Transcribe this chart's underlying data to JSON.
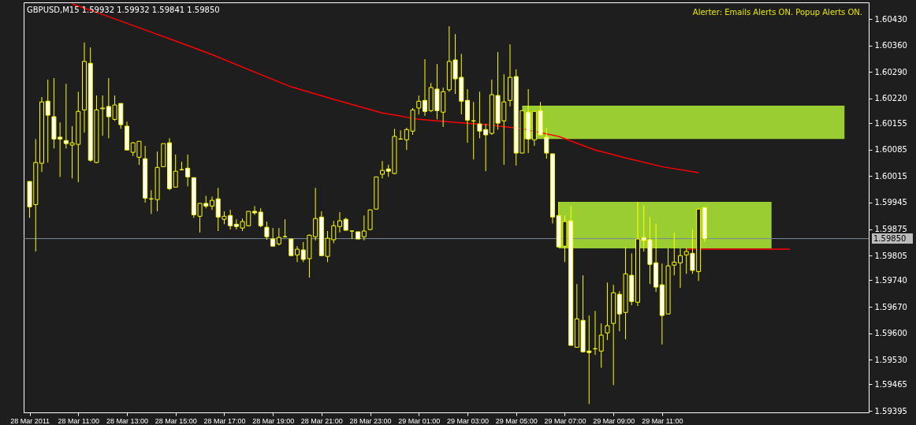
{
  "chart_data": {
    "type": "candlestick",
    "title": "GBPUSD,M15  1.59932 1.59932 1.59841 1.59850",
    "annotations": [
      "Alerter:  Emails Alerts ON.  Popup Alerts ON."
    ],
    "color": "#ffff00",
    "x": [
      "2011-03-28T09:00",
      "2011-03-28T09:15",
      "2011-03-28T09:30",
      "2011-03-28T09:45",
      "2011-03-28T10:00",
      "2011-03-28T10:15",
      "2011-03-28T10:30",
      "2011-03-28T10:45",
      "2011-03-28T11:00",
      "2011-03-28T11:15",
      "2011-03-28T11:30",
      "2011-03-28T11:45",
      "2011-03-28T12:00",
      "2011-03-28T12:15",
      "2011-03-28T12:30",
      "2011-03-28T12:45",
      "2011-03-28T13:00",
      "2011-03-28T13:15",
      "2011-03-28T13:30",
      "2011-03-28T13:45",
      "2011-03-28T14:00",
      "2011-03-28T14:15",
      "2011-03-28T14:30",
      "2011-03-28T14:45",
      "2011-03-28T15:00",
      "2011-03-28T15:15",
      "2011-03-28T15:30",
      "2011-03-28T15:45",
      "2011-03-28T16:00",
      "2011-03-28T16:15",
      "2011-03-28T16:30",
      "2011-03-28T16:45",
      "2011-03-28T17:00",
      "2011-03-28T17:15",
      "2011-03-28T17:30",
      "2011-03-28T17:45",
      "2011-03-28T18:00",
      "2011-03-28T18:15",
      "2011-03-28T18:30",
      "2011-03-28T18:45",
      "2011-03-28T19:00",
      "2011-03-28T19:15",
      "2011-03-28T19:30",
      "2011-03-28T19:45",
      "2011-03-28T20:00",
      "2011-03-28T20:15",
      "2011-03-28T20:30",
      "2011-03-28T20:45",
      "2011-03-28T21:00",
      "2011-03-28T21:15",
      "2011-03-28T21:30",
      "2011-03-28T21:45",
      "2011-03-28T22:00",
      "2011-03-28T22:15",
      "2011-03-28T22:30",
      "2011-03-28T22:45",
      "2011-03-28T23:00",
      "2011-03-28T23:15",
      "2011-03-28T23:30",
      "2011-03-28T23:45",
      "2011-03-29T00:00",
      "2011-03-29T00:15",
      "2011-03-29T00:30",
      "2011-03-29T00:45",
      "2011-03-29T01:00",
      "2011-03-29T01:15",
      "2011-03-29T01:30",
      "2011-03-29T01:45",
      "2011-03-29T02:00",
      "2011-03-29T02:15",
      "2011-03-29T02:30",
      "2011-03-29T02:45",
      "2011-03-29T03:00",
      "2011-03-29T03:15",
      "2011-03-29T03:30",
      "2011-03-29T03:45",
      "2011-03-29T04:00",
      "2011-03-29T04:15",
      "2011-03-29T04:30",
      "2011-03-29T04:45",
      "2011-03-29T05:00",
      "2011-03-29T05:15",
      "2011-03-29T05:30",
      "2011-03-29T05:45",
      "2011-03-29T06:00",
      "2011-03-29T06:15",
      "2011-03-29T06:30",
      "2011-03-29T06:45",
      "2011-03-29T07:00",
      "2011-03-29T07:15",
      "2011-03-29T07:30",
      "2011-03-29T07:45",
      "2011-03-29T08:00",
      "2011-03-29T08:15",
      "2011-03-29T08:30",
      "2011-03-29T08:45",
      "2011-03-29T09:00",
      "2011-03-29T09:15",
      "2011-03-29T09:30",
      "2011-03-29T09:45",
      "2011-03-29T10:00",
      "2011-03-29T10:15",
      "2011-03-29T10:30",
      "2011-03-29T10:45",
      "2011-03-29T11:00",
      "2011-03-29T11:15",
      "2011-03-29T11:30",
      "2011-03-29T11:45",
      "2011-03-29T12:00",
      "2011-03-29T12:15",
      "2011-03-29T12:30",
      "2011-03-29T12:45"
    ],
    "ohlc": [
      [
        1.60001,
        1.60001,
        1.59905,
        1.59934
      ],
      [
        1.5994,
        1.60113,
        1.59816,
        1.60051
      ],
      [
        1.60049,
        1.60224,
        1.60026,
        1.60211
      ],
      [
        1.60213,
        1.6027,
        1.60051,
        1.60176
      ],
      [
        1.60172,
        1.60274,
        1.60088,
        1.60113
      ],
      [
        1.60118,
        1.60157,
        1.60013,
        1.60113
      ],
      [
        1.60109,
        1.60259,
        1.60088,
        1.60101
      ],
      [
        1.60097,
        1.60147,
        1.60009,
        1.60103
      ],
      [
        1.60099,
        1.60238,
        1.59999,
        1.60186
      ],
      [
        1.6019,
        1.60368,
        1.6013,
        1.60318
      ],
      [
        1.60313,
        1.60355,
        1.60053,
        1.60057
      ],
      [
        1.60051,
        1.60228,
        1.60049,
        1.6019
      ],
      [
        1.60193,
        1.60228,
        1.60122,
        1.60195
      ],
      [
        1.60199,
        1.60274,
        1.60115,
        1.60172
      ],
      [
        1.60165,
        1.60228,
        1.60161,
        1.60203
      ],
      [
        1.60207,
        1.60207,
        1.6014,
        1.60151
      ],
      [
        1.60147,
        1.60159,
        1.60084,
        1.60084
      ],
      [
        1.60078,
        1.60105,
        1.60068,
        1.60103
      ],
      [
        1.60065,
        1.60107,
        1.60045,
        1.60107
      ],
      [
        1.60061,
        1.60095,
        1.59945,
        1.59957
      ],
      [
        1.59955,
        1.59978,
        1.59915,
        1.59955
      ],
      [
        1.59953,
        1.6008,
        1.59922,
        1.60038
      ],
      [
        1.6004,
        1.60101,
        1.6004,
        1.60101
      ],
      [
        1.60103,
        1.60115,
        1.59978,
        1.59982
      ],
      [
        1.59986,
        1.60072,
        1.59986,
        1.60028
      ],
      [
        1.60032,
        1.60053,
        1.6003,
        1.60032
      ],
      [
        1.60036,
        1.60072,
        1.59988,
        1.60013
      ],
      [
        1.60011,
        1.60011,
        1.59905,
        1.59913
      ],
      [
        1.59909,
        1.59943,
        1.59866,
        1.59943
      ],
      [
        1.59943,
        1.59963,
        1.5993,
        1.59936
      ],
      [
        1.59936,
        1.59961,
        1.59926,
        1.59951
      ],
      [
        1.59955,
        1.59984,
        1.5987,
        1.59907
      ],
      [
        1.59901,
        1.59922,
        1.59888,
        1.59909
      ],
      [
        1.59911,
        1.59926,
        1.59874,
        1.59884
      ],
      [
        1.59888,
        1.59901,
        1.59874,
        1.59882
      ],
      [
        1.59878,
        1.59903,
        1.5987,
        1.59895
      ],
      [
        1.59884,
        1.59922,
        1.59882,
        1.59922
      ],
      [
        1.59922,
        1.59936,
        1.59913,
        1.59918
      ],
      [
        1.5992,
        1.5993,
        1.5988,
        1.59884
      ],
      [
        1.5988,
        1.59895,
        1.59847,
        1.59855
      ],
      [
        1.59849,
        1.59878,
        1.5983,
        1.5983
      ],
      [
        1.59836,
        1.59878,
        1.59832,
        1.59853
      ],
      [
        1.59855,
        1.59901,
        1.59853,
        1.59855
      ],
      [
        1.59849,
        1.59849,
        1.59805,
        1.59805
      ],
      [
        1.59807,
        1.5983,
        1.59788,
        1.59822
      ],
      [
        1.5982,
        1.59841,
        1.59788,
        1.59795
      ],
      [
        1.59797,
        1.59861,
        1.59747,
        1.59859
      ],
      [
        1.59855,
        1.59984,
        1.59845,
        1.59903
      ],
      [
        1.59907,
        1.59922,
        1.59805,
        1.59805
      ],
      [
        1.59803,
        1.5987,
        1.59788,
        1.59851
      ],
      [
        1.59847,
        1.59897,
        1.59838,
        1.59884
      ],
      [
        1.59882,
        1.5992,
        1.59866,
        1.59897
      ],
      [
        1.59901,
        1.59905,
        1.59872,
        1.59872
      ],
      [
        1.5987,
        1.5987,
        1.59849,
        1.5987
      ],
      [
        1.59868,
        1.59868,
        1.59849,
        1.59849
      ],
      [
        1.59855,
        1.59911,
        1.59845,
        1.5987
      ],
      [
        1.59874,
        1.59926,
        1.59872,
        1.59926
      ],
      [
        1.59928,
        1.60013,
        1.59928,
        1.60013
      ],
      [
        1.6002,
        1.60055,
        1.60009,
        1.6003
      ],
      [
        1.60034,
        1.60045,
        1.60013,
        1.60028
      ],
      [
        1.60022,
        1.6014,
        1.6002,
        1.6012
      ],
      [
        1.60113,
        1.60136,
        1.60113,
        1.60113
      ],
      [
        1.60111,
        1.60143,
        1.60084,
        1.60138
      ],
      [
        1.60134,
        1.60195,
        1.60124,
        1.6019
      ],
      [
        1.60195,
        1.60228,
        1.60178,
        1.60213
      ],
      [
        1.60215,
        1.60324,
        1.60174,
        1.60186
      ],
      [
        1.60188,
        1.60261,
        1.60184,
        1.60249
      ],
      [
        1.60245,
        1.60311,
        1.60165,
        1.60188
      ],
      [
        1.60184,
        1.60249,
        1.60145,
        1.60238
      ],
      [
        1.60243,
        1.60411,
        1.60238,
        1.60318
      ],
      [
        1.60322,
        1.6039,
        1.60232,
        1.60272
      ],
      [
        1.60276,
        1.60338,
        1.60178,
        1.60213
      ],
      [
        1.60215,
        1.60245,
        1.60103,
        1.60163
      ],
      [
        1.60161,
        1.60211,
        1.60059,
        1.60161
      ],
      [
        1.60153,
        1.60238,
        1.60115,
        1.60134
      ],
      [
        1.60138,
        1.60153,
        1.60028,
        1.60124
      ],
      [
        1.60128,
        1.6027,
        1.60124,
        1.6023
      ],
      [
        1.60228,
        1.60343,
        1.60138,
        1.60155
      ],
      [
        1.60161,
        1.60284,
        1.60045,
        1.60211
      ],
      [
        1.60215,
        1.60363,
        1.60199,
        1.60276
      ],
      [
        1.60278,
        1.60297,
        1.60043,
        1.60076
      ],
      [
        1.60076,
        1.60188,
        1.60076,
        1.60188
      ],
      [
        1.60184,
        1.60245,
        1.60076,
        1.60113
      ],
      [
        1.60111,
        1.60186,
        1.60095,
        1.60186
      ],
      [
        1.60188,
        1.60211,
        1.60124,
        1.60124
      ],
      [
        1.60118,
        1.60143,
        1.60061,
        1.60076
      ],
      [
        1.60074,
        1.60074,
        1.5989,
        1.59907
      ],
      [
        1.59911,
        1.59947,
        1.59828,
        1.59828
      ],
      [
        1.5983,
        1.59911,
        1.59788,
        1.59895
      ],
      [
        1.59897,
        1.59936,
        1.59568,
        1.59568
      ],
      [
        1.59563,
        1.5973,
        1.59563,
        1.59638
      ],
      [
        1.59634,
        1.59753,
        1.59549,
        1.59551
      ],
      [
        1.59553,
        1.59647,
        1.59413,
        1.59549
      ],
      [
        1.59559,
        1.59659,
        1.59543,
        1.59559
      ],
      [
        1.59553,
        1.59626,
        1.59509,
        1.59595
      ],
      [
        1.59601,
        1.59734,
        1.59582,
        1.5962
      ],
      [
        1.59626,
        1.59728,
        1.59463,
        1.59707
      ],
      [
        1.59703,
        1.59711,
        1.59605,
        1.59651
      ],
      [
        1.59655,
        1.59828,
        1.59584,
        1.59757
      ],
      [
        1.59753,
        1.59811,
        1.59674,
        1.59684
      ],
      [
        1.59682,
        1.59947,
        1.59672,
        1.59849
      ],
      [
        1.59853,
        1.59938,
        1.59816,
        1.59845
      ],
      [
        1.59847,
        1.59907,
        1.5973,
        1.59782
      ],
      [
        1.59786,
        1.5989,
        1.59709,
        1.59722
      ],
      [
        1.59728,
        1.59784,
        1.5957,
        1.59647
      ],
      [
        1.59651,
        1.59824,
        1.59651,
        1.59778
      ],
      [
        1.5978,
        1.59866,
        1.59753,
        1.59788
      ],
      [
        1.59786,
        1.59824,
        1.5972,
        1.59805
      ],
      [
        1.59807,
        1.59824,
        1.59757,
        1.59816
      ],
      [
        1.59811,
        1.59874,
        1.59757,
        1.59766
      ],
      [
        1.59763,
        1.59928,
        1.59738,
        1.59928
      ],
      [
        1.59932,
        1.59932,
        1.59841,
        1.5985
      ]
    ],
    "series": [
      {
        "type": "area",
        "color": "#9acd32",
        "x": [
          "2011-03-29T05:15",
          "2011-03-29T18:30"
        ],
        "values": [
          null,
          null
        ],
        "lower": [
          1.60113,
          1.60113
        ],
        "upper": [
          1.60201,
          1.60201
        ]
      },
      {
        "type": "area",
        "color": "#9acd32",
        "x": [
          "2011-03-29T06:45",
          "2011-03-29T15:30"
        ],
        "values": [
          null,
          null
        ],
        "lower": [
          1.59824,
          1.59824
        ],
        "upper": [
          1.59947,
          1.59947
        ]
      },
      {
        "type": "line",
        "color": "#ff0000",
        "x": [
          "2011-03-28T10:45",
          "2011-03-28T12:00",
          "2011-03-28T13:30",
          "2011-03-28T15:00",
          "2011-03-28T16:30",
          "2011-03-28T18:15",
          "2011-03-28T19:45",
          "2011-03-28T21:30",
          "2011-03-28T23:30",
          "2011-03-29T01:00",
          "2011-03-29T02:30",
          "2011-03-29T03:45",
          "2011-03-29T05:15",
          "2011-03-29T06:45",
          "2011-03-29T08:15",
          "2011-03-29T09:30",
          "2011-03-29T11:00",
          "2011-03-29T12:30"
        ],
        "values": [
          1.6047,
          1.60442,
          1.60407,
          1.60372,
          1.60336,
          1.6029,
          1.60251,
          1.60218,
          1.60182,
          1.60165,
          1.60157,
          1.60151,
          1.6014,
          1.6012,
          1.60084,
          1.60063,
          1.6004,
          1.60024
        ]
      },
      {
        "type": "line",
        "color": "#ff0000",
        "x": [
          "2011-03-29T12:00",
          "2011-03-29T16:15"
        ],
        "values": [
          1.59822,
          1.59822
        ]
      }
    ],
    "ref_lines": [
      {
        "axis": "y",
        "value": 1.5985,
        "label": "1.59850",
        "color": "#778899"
      }
    ],
    "xlim": [
      "2011-03-28T08:55",
      "2011-03-29T19:20"
    ],
    "xticks": [
      {
        "value": "2011-03-28T09:00",
        "label": "28 Mar 2011"
      },
      {
        "value": "2011-03-28T11:00",
        "label": "28 Mar 11:00"
      },
      {
        "value": "2011-03-28T13:00",
        "label": "28 Mar 13:00"
      },
      {
        "value": "2011-03-28T15:00",
        "label": "28 Mar 15:00"
      },
      {
        "value": "2011-03-28T17:00",
        "label": "28 Mar 17:00"
      },
      {
        "value": "2011-03-28T19:00",
        "label": "28 Mar 19:00"
      },
      {
        "value": "2011-03-28T21:00",
        "label": "28 Mar 21:00"
      },
      {
        "value": "2011-03-28T23:00",
        "label": "28 Mar 23:00"
      },
      {
        "value": "2011-03-29T01:00",
        "label": "29 Mar 01:00"
      },
      {
        "value": "2011-03-29T03:00",
        "label": "29 Mar 03:00"
      },
      {
        "value": "2011-03-29T05:00",
        "label": "29 Mar 05:00"
      },
      {
        "value": "2011-03-29T07:00",
        "label": "29 Mar 07:00"
      },
      {
        "value": "2011-03-29T09:00",
        "label": "29 Mar 09:00"
      },
      {
        "value": "2011-03-29T11:00",
        "label": "29 Mar 11:00"
      }
    ],
    "ylim": [
      1.59391,
      1.60474
    ],
    "yticks": [
      {
        "value": 1.6043,
        "label": "1.60430"
      },
      {
        "value": 1.6036,
        "label": "1.60360"
      },
      {
        "value": 1.6029,
        "label": "1.60290"
      },
      {
        "value": 1.6022,
        "label": "1.60220"
      },
      {
        "value": 1.60155,
        "label": "1.60155"
      },
      {
        "value": 1.60085,
        "label": "1.60085"
      },
      {
        "value": 1.60015,
        "label": "1.60015"
      },
      {
        "value": 1.59945,
        "label": "1.59945"
      },
      {
        "value": 1.59875,
        "label": "1.59875"
      },
      {
        "value": 1.59805,
        "label": "1.59805"
      },
      {
        "value": 1.5974,
        "label": "1.59740"
      },
      {
        "value": 1.5967,
        "label": "1.59670"
      },
      {
        "value": 1.596,
        "label": "1.59600"
      },
      {
        "value": 1.5953,
        "label": "1.59530"
      },
      {
        "value": 1.59465,
        "label": "1.59465"
      },
      {
        "value": 1.59395,
        "label": "1.59395"
      }
    ],
    "grid": false
  }
}
